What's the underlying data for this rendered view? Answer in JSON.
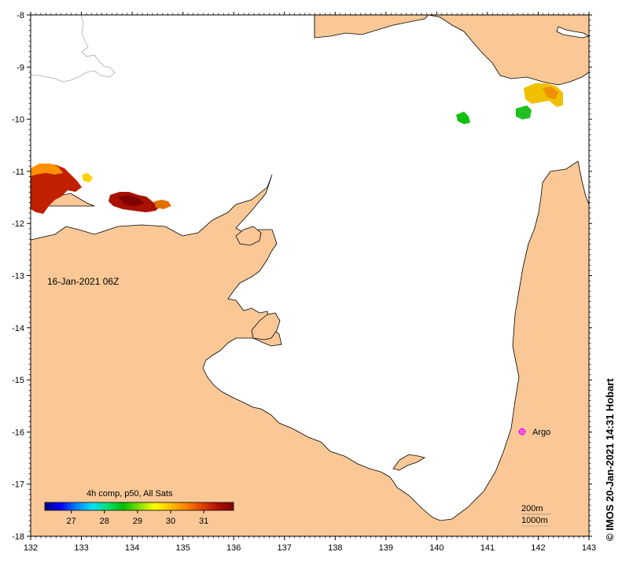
{
  "map": {
    "date_label": "16-Jan-2021 06Z",
    "float_label": "Argo",
    "depth_contours": [
      "200m",
      "1000m"
    ],
    "credit": "© IMOS 20-Jan-2021 14:31 Hobart",
    "colors": {
      "land": "#f9c896",
      "sea": "#ffffff",
      "coast": "#000000",
      "argo": "#ff00ff"
    }
  },
  "axes": {
    "x_ticks": [
      "132",
      "133",
      "134",
      "135",
      "136",
      "137",
      "138",
      "139",
      "140",
      "141",
      "142",
      "143"
    ],
    "y_ticks": [
      "-8",
      "-9",
      "-10",
      "-11",
      "-12",
      "-13",
      "-14",
      "-15",
      "-16",
      "-17",
      "-18"
    ],
    "lon_range": [
      132,
      143
    ],
    "lat_range": [
      -18,
      -8
    ]
  },
  "colorbar": {
    "title": "4h comp, p50, All Sats",
    "ticks": [
      "27",
      "28",
      "29",
      "30",
      "31"
    ],
    "range": [
      26.2,
      31.9
    ],
    "colors": [
      "#00007f",
      "#0000ff",
      "#0080ff",
      "#00e0ff",
      "#00e070",
      "#00c000",
      "#80e000",
      "#ffff00",
      "#ffc000",
      "#ff8000",
      "#e04000",
      "#b01000",
      "#7f0000"
    ]
  }
}
